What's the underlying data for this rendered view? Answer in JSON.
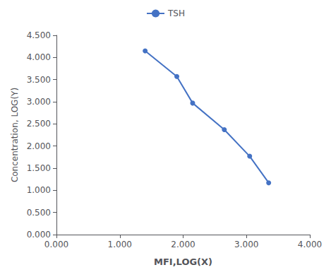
{
  "chart_data": {
    "type": "line",
    "xlabel": "MFI,LOG(X)",
    "ylabel": "Concentration, LOG(Y)",
    "x": [
      1.4,
      1.9,
      2.15,
      2.65,
      3.05,
      3.35
    ],
    "series": [
      {
        "name": "TSH",
        "color": "#4472C4",
        "marker": "circle",
        "values": [
          4.15,
          3.57,
          2.97,
          2.37,
          1.77,
          1.17
        ]
      }
    ],
    "xlim": [
      0.0,
      4.0
    ],
    "ylim": [
      0.0,
      4.5
    ],
    "xticks": [
      {
        "value": 0.0,
        "label": "0.000"
      },
      {
        "value": 1.0,
        "label": "1.000"
      },
      {
        "value": 2.0,
        "label": "2.000"
      },
      {
        "value": 3.0,
        "label": "3.000"
      },
      {
        "value": 4.0,
        "label": "4.000"
      }
    ],
    "yticks": [
      {
        "value": 0.0,
        "label": "0.000"
      },
      {
        "value": 0.5,
        "label": "0.500"
      },
      {
        "value": 1.0,
        "label": "1.000"
      },
      {
        "value": 1.5,
        "label": "1.500"
      },
      {
        "value": 2.0,
        "label": "2.000"
      },
      {
        "value": 2.5,
        "label": "2.500"
      },
      {
        "value": 3.0,
        "label": "3.000"
      },
      {
        "value": 3.5,
        "label": "3.500"
      },
      {
        "value": 4.0,
        "label": "4.000"
      },
      {
        "value": 4.5,
        "label": "4.500"
      }
    ],
    "grid": false,
    "legend": "top"
  }
}
